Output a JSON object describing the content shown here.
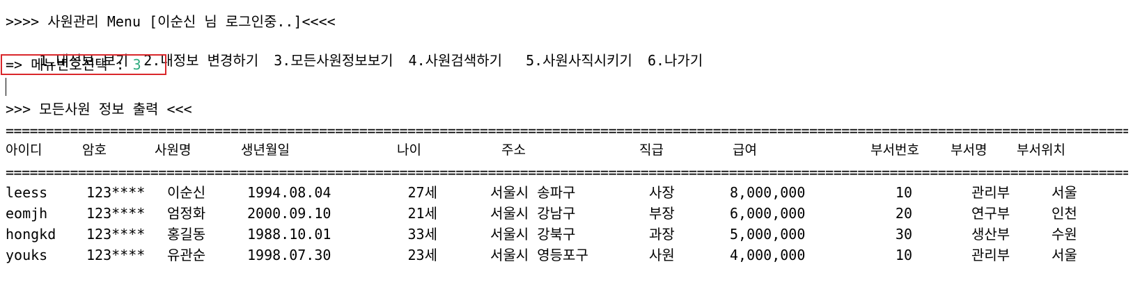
{
  "console": {
    "title_line": ">>>> 사원관리 Menu [이순신 님 로그인중..]<<<<",
    "menu_items": [
      "1.내정보 보기",
      "2.내정보 변경하기",
      "3.모든사원정보보기",
      "4.사원검색하기 ",
      "5.사원사직시키기",
      "6.나가기"
    ],
    "prompt_label": "=> 메뉴번호선택 : ",
    "prompt_value": "3",
    "section_title": ">>> 모든사원 정보 출력 <<<",
    "rule_char": "=",
    "accent_colors": {
      "prompt_border": "#d9262a",
      "input_value": "#2daa7d"
    }
  },
  "table": {
    "columns": [
      "아이디",
      "암호",
      "사원명",
      "생년월일",
      "나이",
      "주소",
      "직급",
      "급여",
      "부서번호",
      "부서명",
      "부서위치"
    ],
    "rows": [
      [
        "leess",
        "123****",
        "이순신",
        "1994.08.04",
        "27세",
        "서울시 송파구",
        "사장",
        "8,000,000",
        "10",
        "관리부",
        "서울"
      ],
      [
        "eomjh",
        "123****",
        "엄정화",
        "2000.09.10",
        "21세",
        "서울시 강남구",
        "부장",
        "6,000,000",
        "20",
        "연구부",
        "인천"
      ],
      [
        "hongkd",
        "123****",
        "홍길동",
        "1988.10.01",
        "33세",
        "서울시 강북구",
        "과장",
        "5,000,000",
        "30",
        "생산부",
        "수원"
      ],
      [
        "youks",
        "123****",
        "유관순",
        "1998.07.30",
        "23세",
        "서울시 영등포구",
        "사원",
        "4,000,000",
        "10",
        "관리부",
        "서울"
      ]
    ]
  }
}
